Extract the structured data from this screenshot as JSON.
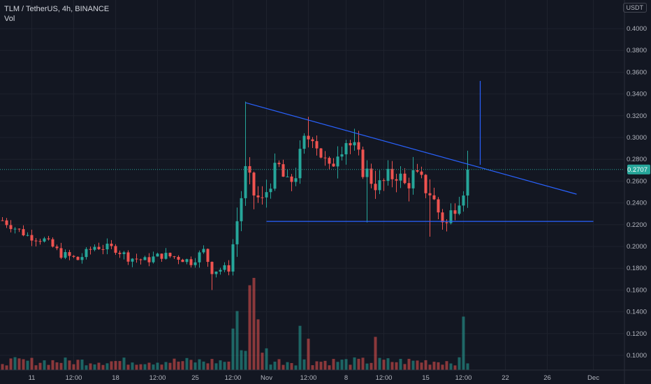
{
  "legend": {
    "symbol_line": "TLM / TetherUS, 4h, BINANCE",
    "indicator": "Vol"
  },
  "currency_label": "USDT",
  "colors": {
    "background": "#131722",
    "up": "#26a69a",
    "down": "#ef5350",
    "drawing": "#2962ff",
    "last_price_bg": "#26a69a",
    "text": "#b2b5be"
  },
  "chart_data": {
    "type": "candlestick",
    "title": "TLM / TetherUS, 4h, BINANCE",
    "ylim": [
      0.085,
      0.415
    ],
    "y_ticks": [
      "0.4000",
      "0.3800",
      "0.3600",
      "0.3400",
      "0.3200",
      "0.3000",
      "0.2800",
      "0.2600",
      "0.2400",
      "0.2200",
      "0.2000",
      "0.1800",
      "0.1600",
      "0.1400",
      "0.1200",
      "0.1000"
    ],
    "x_ticks": [
      "11",
      "12:00",
      "18",
      "12:00",
      "25",
      "12:00",
      "Nov",
      "12:00",
      "8",
      "12:00",
      "15",
      "12:00",
      "22",
      "26",
      "Dec"
    ],
    "x_tick_index": [
      7,
      17,
      27,
      37,
      46,
      55,
      63,
      73,
      82,
      91,
      101,
      110,
      120,
      130,
      141
    ],
    "last_price": "0.2707",
    "volume_panel": true,
    "price_path": [
      [
        0,
        0.224
      ],
      [
        6,
        0.21
      ],
      [
        10,
        0.206
      ],
      [
        14,
        0.193
      ],
      [
        18,
        0.188
      ],
      [
        22,
        0.2
      ],
      [
        27,
        0.198
      ],
      [
        30,
        0.19
      ],
      [
        34,
        0.187
      ],
      [
        38,
        0.192
      ],
      [
        42,
        0.19
      ],
      [
        45,
        0.186
      ],
      [
        48,
        0.196
      ],
      [
        50,
        0.178
      ],
      [
        54,
        0.18
      ],
      [
        56,
        0.224
      ],
      [
        58,
        0.268
      ],
      [
        60,
        0.248
      ],
      [
        62,
        0.24
      ],
      [
        64,
        0.262
      ],
      [
        66,
        0.272
      ],
      [
        68,
        0.255
      ],
      [
        70,
        0.268
      ],
      [
        72,
        0.295
      ],
      [
        74,
        0.305
      ],
      [
        76,
        0.285
      ],
      [
        78,
        0.268
      ],
      [
        80,
        0.29
      ],
      [
        82,
        0.298
      ],
      [
        84,
        0.288
      ],
      [
        86,
        0.272
      ],
      [
        88,
        0.262
      ],
      [
        90,
        0.255
      ],
      [
        92,
        0.262
      ],
      [
        94,
        0.268
      ],
      [
        96,
        0.256
      ],
      [
        98,
        0.265
      ],
      [
        100,
        0.258
      ],
      [
        102,
        0.25
      ],
      [
        104,
        0.232
      ],
      [
        106,
        0.22
      ],
      [
        108,
        0.24
      ],
      [
        110,
        0.255
      ],
      [
        111,
        0.272
      ]
    ],
    "volume_peaks": [
      [
        55,
        0.45
      ],
      [
        56,
        0.64
      ],
      [
        59,
        0.92
      ],
      [
        60,
        1.0
      ],
      [
        61,
        0.55
      ],
      [
        71,
        0.48
      ],
      [
        73,
        0.34
      ],
      [
        89,
        0.36
      ],
      [
        110,
        0.58
      ]
    ],
    "drawings": {
      "resistance_line": [
        [
          58,
          0.332
        ],
        [
          137,
          0.248
        ]
      ],
      "support_line": [
        [
          63,
          0.223
        ],
        [
          141,
          0.223
        ]
      ],
      "target_line": [
        [
          114,
          0.352
        ],
        [
          114,
          0.275
        ]
      ]
    }
  }
}
